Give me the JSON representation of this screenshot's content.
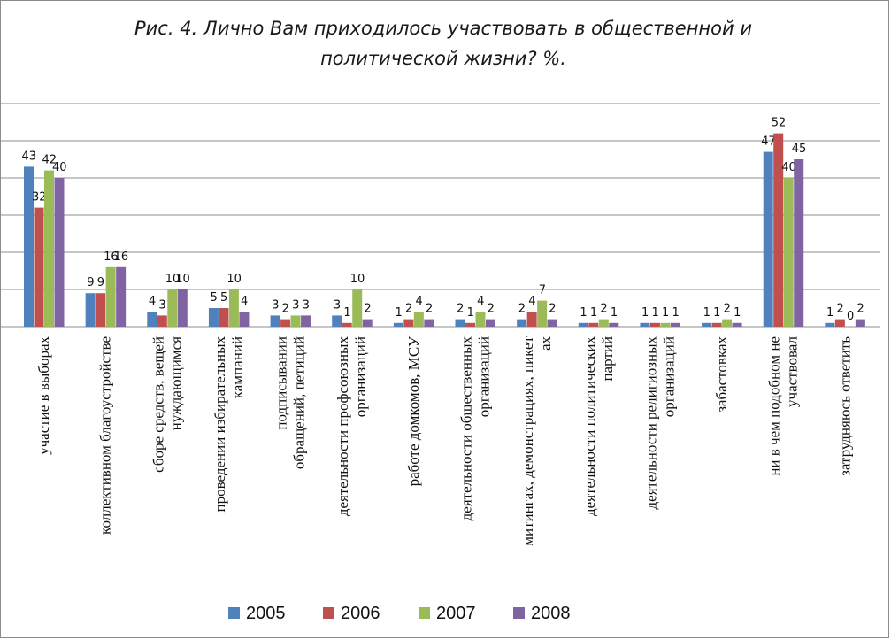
{
  "chart_data": {
    "type": "bar",
    "title": "Рис. 4. Лично Вам приходилось участвовать в общественной и политической жизни? %.",
    "title_lines": [
      "Рис. 4. Лично Вам приходилось участвовать в общественной и",
      "политической жизни? %."
    ],
    "categories": [
      [
        "участие в выборах"
      ],
      [
        "коллективном благоустройстве"
      ],
      [
        "сборе средств, вещей",
        "нуждающимся"
      ],
      [
        "проведении избирательных",
        "кампаний"
      ],
      [
        "подписывании",
        "обращений, петиций"
      ],
      [
        "деятельности профсоюзных",
        "организаций"
      ],
      [
        "работе домкомов, МСУ"
      ],
      [
        "деятельности общественных",
        "организаций"
      ],
      [
        "митингах, демонстрациях, пикет",
        "ах"
      ],
      [
        "деятельности политических",
        "партий"
      ],
      [
        "деятельности религиозных",
        "организаций"
      ],
      [
        "забастовках"
      ],
      [
        "ни в чем подобном не",
        "участвовал"
      ],
      [
        "затрудняюсь ответить"
      ]
    ],
    "series": [
      {
        "name": "2005",
        "color": "#4f81bd",
        "values": [
          43,
          9,
          4,
          5,
          3,
          3,
          1,
          2,
          2,
          1,
          1,
          1,
          47,
          1
        ]
      },
      {
        "name": "2006",
        "color": "#c0504d",
        "values": [
          32,
          9,
          3,
          5,
          2,
          1,
          2,
          1,
          4,
          1,
          1,
          1,
          52,
          2
        ]
      },
      {
        "name": "2007",
        "color": "#9bbb59",
        "values": [
          42,
          16,
          10,
          10,
          3,
          10,
          4,
          4,
          7,
          2,
          1,
          2,
          40,
          0
        ]
      },
      {
        "name": "2008",
        "color": "#8064a2",
        "values": [
          40,
          16,
          10,
          4,
          3,
          2,
          2,
          2,
          2,
          1,
          1,
          1,
          45,
          2
        ]
      }
    ],
    "ylim": [
      0,
      60
    ],
    "gridlines": [
      10,
      20,
      30,
      40,
      50,
      60
    ],
    "grid": true,
    "legend_position": "bottom"
  }
}
